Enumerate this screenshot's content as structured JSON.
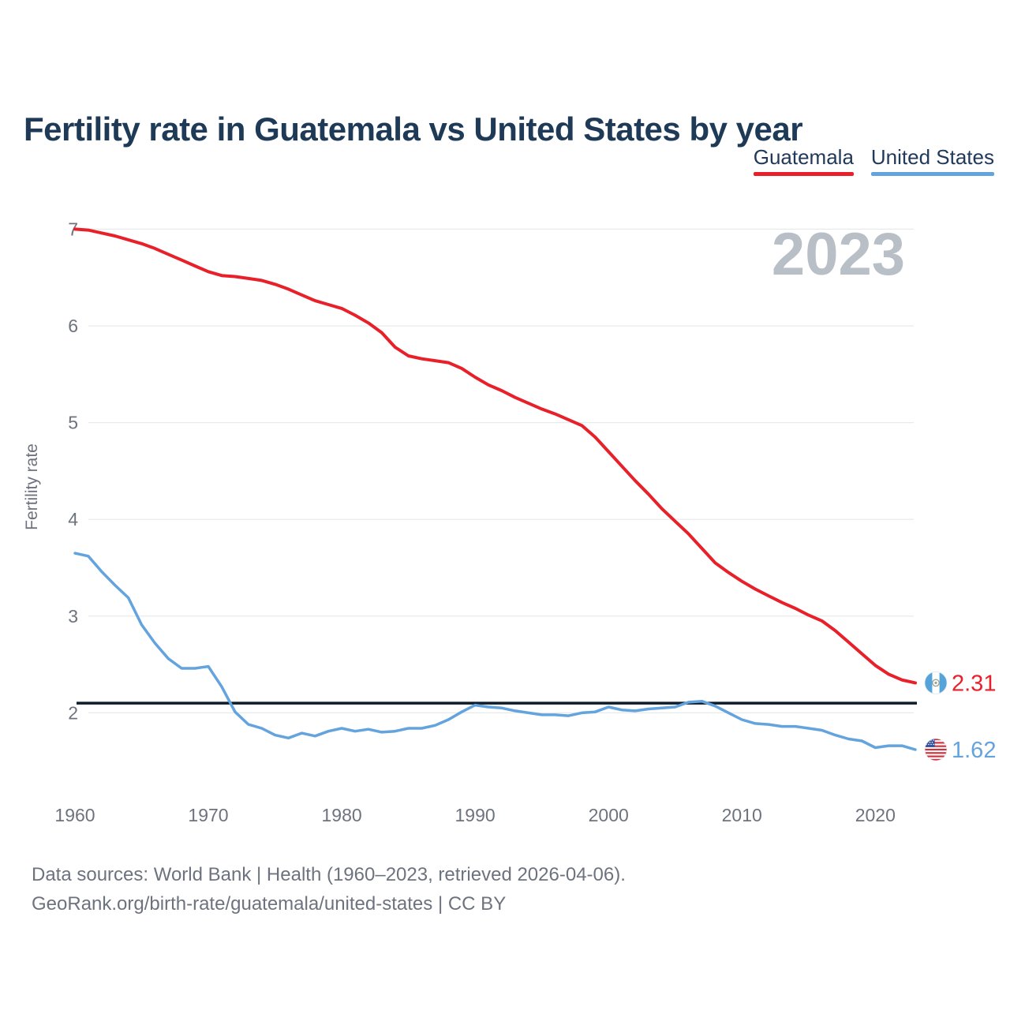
{
  "header": {
    "title": "Fertility rate in Guatemala vs United States by year"
  },
  "footer": {
    "line1": "Data sources: World Bank | Health (1960–2023, retrieved 2026-04-06).",
    "line2": "GeoRank.org/birth-rate/guatemala/united-states | CC BY"
  },
  "chart_data": {
    "type": "line",
    "title": "Fertility rate in Guatemala vs United States by year",
    "xlabel": "",
    "ylabel": "Fertility rate",
    "x_start": 1960,
    "x_end": 2023,
    "xticks": [
      "1960",
      "1970",
      "1980",
      "1990",
      "2000",
      "2010",
      "2020"
    ],
    "yticks": [
      7,
      6,
      5,
      4,
      3,
      2
    ],
    "ylim": [
      2,
      7
    ],
    "grid": "horizontal",
    "legend_position": "top-right",
    "current_year_watermark": "2023",
    "replacement_level": 2.1,
    "replacement_line_color": "#0d1b2b",
    "gridline_color": "#e7e9ec",
    "series": [
      {
        "name": "Guatemala",
        "color": "#e8202a",
        "end_label": "2.31",
        "flag": "guatemala",
        "values": [
          7.0,
          6.99,
          6.96,
          6.93,
          6.89,
          6.85,
          6.8,
          6.74,
          6.68,
          6.62,
          6.56,
          6.52,
          6.51,
          6.49,
          6.47,
          6.43,
          6.38,
          6.32,
          6.26,
          6.22,
          6.18,
          6.11,
          6.03,
          5.93,
          5.78,
          5.69,
          5.66,
          5.64,
          5.62,
          5.56,
          5.47,
          5.39,
          5.33,
          5.26,
          5.2,
          5.14,
          5.09,
          5.03,
          4.97,
          4.85,
          4.7,
          4.55,
          4.4,
          4.26,
          4.11,
          3.98,
          3.85,
          3.7,
          3.55,
          3.45,
          3.36,
          3.28,
          3.21,
          3.14,
          3.08,
          3.01,
          2.95,
          2.85,
          2.73,
          2.61,
          2.49,
          2.4,
          2.34,
          2.31
        ]
      },
      {
        "name": "United States",
        "color": "#63a3de",
        "end_label": "1.62",
        "flag": "united-states",
        "values": [
          3.65,
          3.62,
          3.46,
          3.32,
          3.19,
          2.91,
          2.72,
          2.56,
          2.46,
          2.46,
          2.48,
          2.27,
          2.01,
          1.88,
          1.84,
          1.77,
          1.74,
          1.79,
          1.76,
          1.81,
          1.84,
          1.81,
          1.83,
          1.8,
          1.81,
          1.84,
          1.84,
          1.87,
          1.93,
          2.01,
          2.08,
          2.06,
          2.05,
          2.02,
          2.0,
          1.98,
          1.98,
          1.97,
          2.0,
          2.01,
          2.06,
          2.03,
          2.02,
          2.04,
          2.05,
          2.06,
          2.11,
          2.12,
          2.07,
          2.0,
          1.93,
          1.89,
          1.88,
          1.86,
          1.86,
          1.84,
          1.82,
          1.77,
          1.73,
          1.71,
          1.64,
          1.66,
          1.66,
          1.62
        ]
      }
    ]
  }
}
